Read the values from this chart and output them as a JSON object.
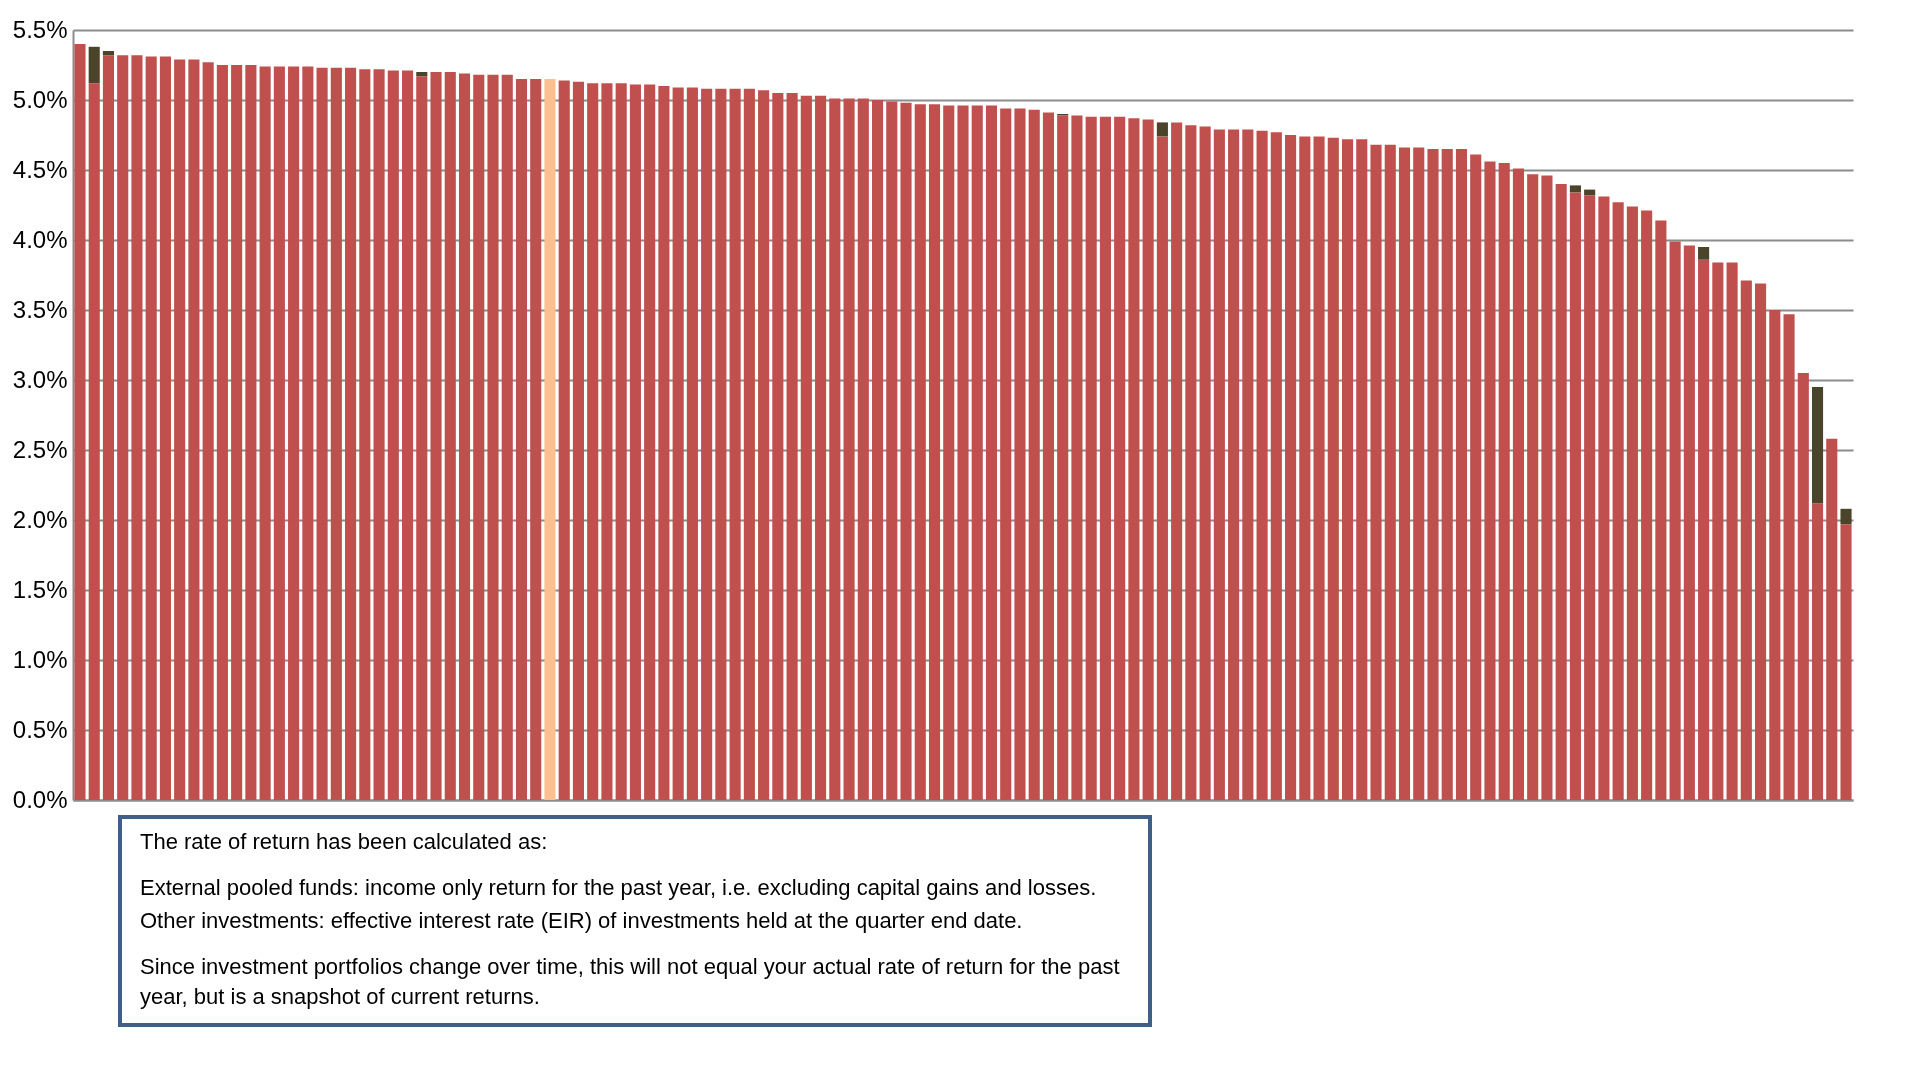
{
  "chart_data": {
    "type": "bar",
    "stacked": true,
    "categories": [
      null,
      null,
      null,
      null,
      null,
      null,
      null,
      null,
      null,
      null,
      null,
      null,
      null,
      null,
      null,
      null,
      null,
      null,
      null,
      null,
      null,
      null,
      null,
      null,
      null,
      null,
      null,
      null,
      null,
      null,
      null,
      null,
      null,
      null,
      null,
      null,
      null,
      null,
      null,
      null,
      null,
      null,
      null,
      null,
      null,
      null,
      null,
      null,
      null,
      null,
      null,
      null,
      null,
      null,
      null,
      null,
      null,
      null,
      null,
      null,
      null,
      null,
      null,
      null,
      null,
      null,
      null,
      null,
      null,
      null,
      null,
      null,
      null,
      null,
      null,
      null,
      null,
      null,
      null,
      null,
      null,
      null,
      null,
      null,
      null,
      null,
      null,
      null,
      null,
      null,
      null,
      null,
      null,
      null,
      null,
      null,
      null,
      null,
      null,
      null,
      null,
      null,
      null,
      null,
      null,
      null,
      null,
      null,
      null,
      null,
      null,
      null,
      null,
      null,
      null,
      null,
      null,
      null,
      null,
      null,
      null,
      null,
      null,
      null,
      null
    ],
    "series": [
      {
        "colors": [
          "#c0504d",
          "#c0504d",
          "#c0504d",
          "#c0504d",
          "#c0504d",
          "#c0504d",
          "#c0504d",
          "#c0504d",
          "#c0504d",
          "#c0504d",
          "#c0504d",
          "#c0504d",
          "#c0504d",
          "#c0504d",
          "#c0504d",
          "#c0504d",
          "#c0504d",
          "#c0504d",
          "#c0504d",
          "#c0504d",
          "#c0504d",
          "#c0504d",
          "#c0504d",
          "#c0504d",
          "#c0504d",
          "#c0504d",
          "#c0504d",
          "#c0504d",
          "#c0504d",
          "#c0504d",
          "#c0504d",
          "#c0504d",
          "#c0504d",
          "#fac090",
          "#c0504d",
          "#c0504d",
          "#c0504d",
          "#c0504d",
          "#c0504d",
          "#c0504d",
          "#c0504d",
          "#c0504d",
          "#c0504d",
          "#c0504d",
          "#c0504d",
          "#c0504d",
          "#c0504d",
          "#c0504d",
          "#c0504d",
          "#c0504d",
          "#c0504d",
          "#c0504d",
          "#c0504d",
          "#c0504d",
          "#c0504d",
          "#c0504d",
          "#c0504d",
          "#c0504d",
          "#c0504d",
          "#c0504d",
          "#c0504d",
          "#c0504d",
          "#c0504d",
          "#c0504d",
          "#c0504d",
          "#c0504d",
          "#c0504d",
          "#c0504d",
          "#c0504d",
          "#c0504d",
          "#c0504d",
          "#c0504d",
          "#c0504d",
          "#c0504d",
          "#c0504d",
          "#c0504d",
          "#c0504d",
          "#c0504d",
          "#c0504d",
          "#c0504d",
          "#c0504d",
          "#c0504d",
          "#c0504d",
          "#c0504d",
          "#c0504d",
          "#c0504d",
          "#c0504d",
          "#c0504d",
          "#c0504d",
          "#c0504d",
          "#c0504d",
          "#c0504d",
          "#c0504d",
          "#c0504d",
          "#c0504d",
          "#c0504d",
          "#c0504d",
          "#c0504d",
          "#c0504d",
          "#c0504d",
          "#c0504d",
          "#c0504d",
          "#c0504d",
          "#c0504d",
          "#c0504d",
          "#c0504d",
          "#c0504d",
          "#c0504d",
          "#c0504d",
          "#c0504d",
          "#c0504d",
          "#c0504d",
          "#c0504d",
          "#c0504d",
          "#c0504d",
          "#c0504d",
          "#c0504d",
          "#c0504d",
          "#c0504d",
          "#c0504d",
          "#c0504d",
          "#c0504d",
          "#c0504d",
          "#c0504d",
          "#c0504d"
        ],
        "values": [
          5.4,
          5.12,
          5.32,
          5.32,
          5.32,
          5.31,
          5.31,
          5.29,
          5.29,
          5.27,
          5.25,
          5.25,
          5.25,
          5.24,
          5.24,
          5.24,
          5.24,
          5.23,
          5.23,
          5.23,
          5.22,
          5.22,
          5.21,
          5.21,
          5.17,
          5.2,
          5.2,
          5.19,
          5.18,
          5.18,
          5.18,
          5.15,
          5.15,
          5.15,
          5.14,
          5.13,
          5.12,
          5.12,
          5.12,
          5.11,
          5.11,
          5.1,
          5.09,
          5.09,
          5.08,
          5.08,
          5.08,
          5.08,
          5.07,
          5.05,
          5.05,
          5.03,
          5.03,
          5.01,
          5.01,
          5.01,
          5.0,
          4.99,
          4.98,
          4.97,
          4.97,
          4.96,
          4.96,
          4.96,
          4.96,
          4.94,
          4.94,
          4.93,
          4.91,
          4.89,
          4.89,
          4.88,
          4.88,
          4.88,
          4.87,
          4.86,
          4.74,
          4.84,
          4.82,
          4.81,
          4.79,
          4.79,
          4.79,
          4.78,
          4.77,
          4.75,
          4.74,
          4.74,
          4.73,
          4.72,
          4.72,
          4.68,
          4.68,
          4.66,
          4.66,
          4.65,
          4.65,
          4.65,
          4.61,
          4.56,
          4.55,
          4.51,
          4.47,
          4.46,
          4.4,
          4.34,
          4.32,
          4.31,
          4.27,
          4.24,
          4.21,
          4.14,
          3.99,
          3.96,
          3.86,
          3.84,
          3.84,
          3.71,
          3.69,
          3.5,
          3.47,
          3.05,
          2.12,
          2.58,
          1.97
        ]
      },
      {
        "color": "#4a452a",
        "values": [
          null,
          0.26,
          0.03,
          null,
          null,
          null,
          null,
          null,
          null,
          null,
          null,
          null,
          null,
          null,
          null,
          null,
          null,
          null,
          null,
          null,
          null,
          null,
          null,
          null,
          0.03,
          null,
          null,
          null,
          null,
          null,
          null,
          null,
          null,
          null,
          null,
          null,
          null,
          null,
          null,
          null,
          null,
          null,
          null,
          null,
          null,
          null,
          null,
          null,
          null,
          null,
          null,
          null,
          null,
          null,
          null,
          null,
          null,
          null,
          null,
          null,
          null,
          null,
          null,
          null,
          null,
          null,
          null,
          null,
          null,
          0.01,
          null,
          null,
          null,
          null,
          null,
          null,
          0.1,
          null,
          null,
          null,
          null,
          null,
          null,
          null,
          null,
          null,
          null,
          null,
          null,
          null,
          null,
          null,
          null,
          null,
          null,
          null,
          null,
          null,
          null,
          null,
          null,
          null,
          null,
          null,
          null,
          0.05,
          0.04,
          null,
          null,
          null,
          null,
          null,
          null,
          null,
          0.09,
          null,
          null,
          null,
          null,
          null,
          null,
          null,
          0.83,
          null,
          0.11
        ]
      }
    ],
    "ylim": [
      0,
      5.5
    ],
    "yticks": [
      {
        "value": 0,
        "label": "0.0%"
      },
      {
        "value": 0.5,
        "label": "0.5%"
      },
      {
        "value": 1,
        "label": "1.0%"
      },
      {
        "value": 1.5,
        "label": "1.5%"
      },
      {
        "value": 2,
        "label": "2.0%"
      },
      {
        "value": 2.5,
        "label": "2.5%"
      },
      {
        "value": 3,
        "label": "3.0%"
      },
      {
        "value": 3.5,
        "label": "3.5%"
      },
      {
        "value": 4,
        "label": "4.0%"
      },
      {
        "value": 4.5,
        "label": "4.5%"
      },
      {
        "value": 5,
        "label": "5.0%"
      },
      {
        "value": 5.5,
        "label": "5.5%"
      }
    ],
    "grid": "y",
    "tick_labels": "y",
    "annotations": [
      "The rate of return has been calculated as:",
      "External pooled funds: income only return for the past year, i.e. excluding capital gains and losses.",
      "Other investments: effective interest rate (EIR) of investments held at the quarter end date.",
      "Since investment portfolios change over time, this will not equal your actual rate of return for the past year, but is a snapshot of current returns."
    ]
  }
}
